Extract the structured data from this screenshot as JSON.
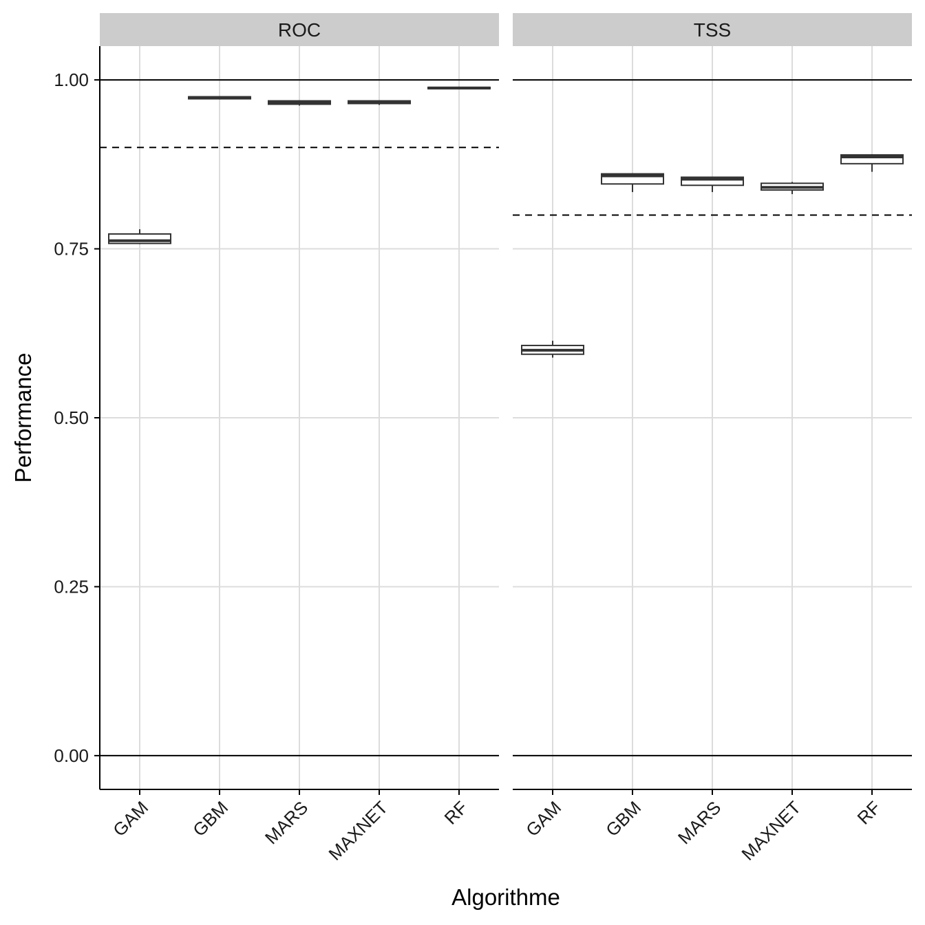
{
  "chart_data": {
    "type": "boxplot",
    "xlabel": "Algorithme",
    "ylabel": "Performance",
    "ylim": [
      -0.05,
      1.05
    ],
    "yticks": [
      0.0,
      0.25,
      0.5,
      0.75,
      1.0
    ],
    "ytick_labels": [
      "0.00",
      "0.25",
      "0.50",
      "0.75",
      "1.00"
    ],
    "categories": [
      "GAM",
      "GBM",
      "MARS",
      "MAXNET",
      "RF"
    ],
    "reference_lines": [
      0,
      1
    ],
    "panels": [
      {
        "title": "ROC",
        "threshold": 0.9,
        "boxes": [
          {
            "category": "GAM",
            "min": 0.757,
            "q1": 0.758,
            "median": 0.762,
            "q3": 0.772,
            "max": 0.779
          },
          {
            "category": "GBM",
            "min": 0.971,
            "q1": 0.972,
            "median": 0.974,
            "q3": 0.975,
            "max": 0.976
          },
          {
            "category": "MARS",
            "min": 0.962,
            "q1": 0.964,
            "median": 0.967,
            "q3": 0.969,
            "max": 0.97
          },
          {
            "category": "MAXNET",
            "min": 0.963,
            "q1": 0.965,
            "median": 0.967,
            "q3": 0.969,
            "max": 0.97
          },
          {
            "category": "RF",
            "min": 0.986,
            "q1": 0.987,
            "median": 0.988,
            "q3": 0.989,
            "max": 0.99
          }
        ]
      },
      {
        "title": "TSS",
        "threshold": 0.8,
        "boxes": [
          {
            "category": "GAM",
            "min": 0.589,
            "q1": 0.594,
            "median": 0.6,
            "q3": 0.607,
            "max": 0.614
          },
          {
            "category": "GBM",
            "min": 0.834,
            "q1": 0.846,
            "median": 0.858,
            "q3": 0.861,
            "max": 0.862
          },
          {
            "category": "MARS",
            "min": 0.834,
            "q1": 0.844,
            "median": 0.853,
            "q3": 0.856,
            "max": 0.857
          },
          {
            "category": "MAXNET",
            "min": 0.831,
            "q1": 0.837,
            "median": 0.841,
            "q3": 0.847,
            "max": 0.849
          },
          {
            "category": "RF",
            "min": 0.864,
            "q1": 0.876,
            "median": 0.886,
            "q3": 0.889,
            "max": 0.89
          }
        ]
      }
    ]
  }
}
